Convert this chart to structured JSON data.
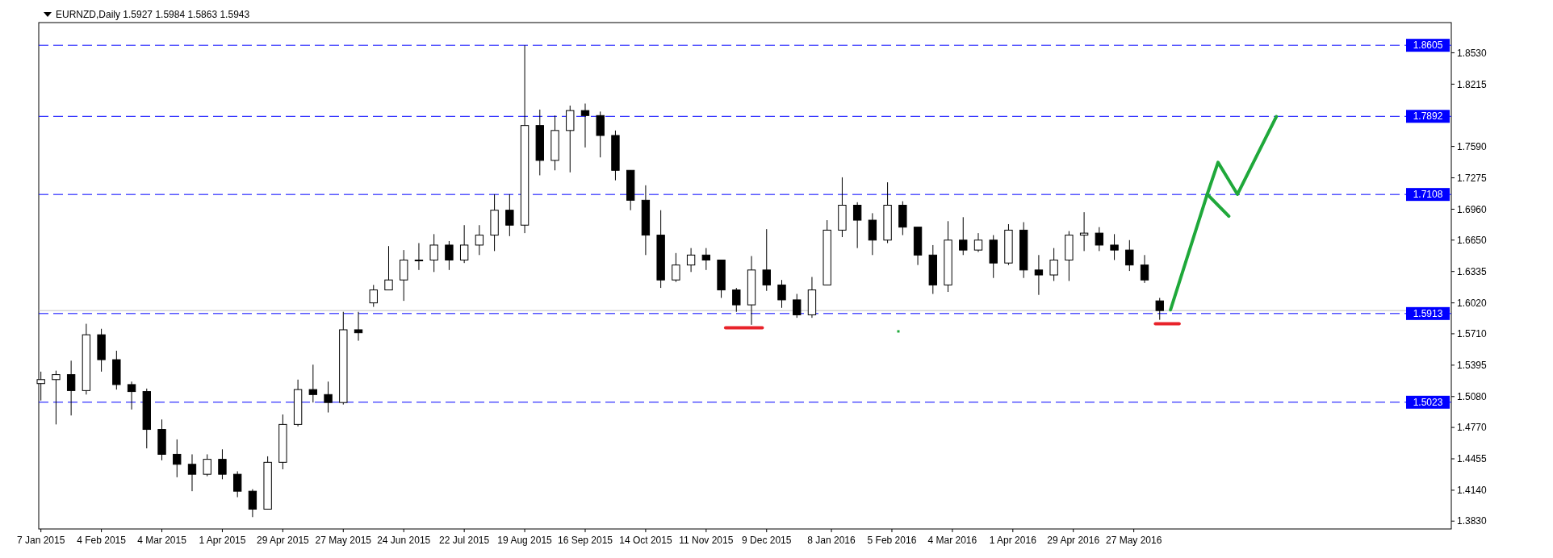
{
  "chart_data": {
    "type": "candlestick",
    "title": "EURNZD,Daily 1.5927 1.5984 1.5863 1.5943",
    "x": [
      "2015-01-07",
      "2015-01-14",
      "2015-01-21",
      "2015-01-28",
      "2015-02-04",
      "2015-02-11",
      "2015-02-18",
      "2015-02-25",
      "2015-03-04",
      "2015-03-11",
      "2015-03-18",
      "2015-03-25",
      "2015-04-01",
      "2015-04-08",
      "2015-04-15",
      "2015-04-22",
      "2015-04-29",
      "2015-05-06",
      "2015-05-13",
      "2015-05-20",
      "2015-05-27",
      "2015-06-03",
      "2015-06-10",
      "2015-06-17",
      "2015-06-24",
      "2015-07-01",
      "2015-07-08",
      "2015-07-15",
      "2015-07-22",
      "2015-07-29",
      "2015-08-05",
      "2015-08-12",
      "2015-08-19",
      "2015-08-26",
      "2015-09-02",
      "2015-09-09",
      "2015-09-16",
      "2015-09-23",
      "2015-09-30",
      "2015-10-07",
      "2015-10-14",
      "2015-10-21",
      "2015-10-28",
      "2015-11-04",
      "2015-11-11",
      "2015-11-18",
      "2015-11-25",
      "2015-12-02",
      "2015-12-09",
      "2015-12-16",
      "2015-12-23",
      "2015-12-30",
      "2016-01-06",
      "2016-01-13",
      "2016-01-20",
      "2016-01-27",
      "2016-02-03",
      "2016-02-10",
      "2016-02-17",
      "2016-02-24",
      "2016-03-02",
      "2016-03-09",
      "2016-03-16",
      "2016-03-23",
      "2016-03-30",
      "2016-04-06",
      "2016-04-13",
      "2016-04-20",
      "2016-04-27",
      "2016-05-04",
      "2016-05-11",
      "2016-05-18",
      "2016-05-25",
      "2016-06-01",
      "2016-06-08"
    ],
    "ohlc": [
      [
        1.521,
        1.533,
        1.504,
        1.525
      ],
      [
        1.525,
        1.534,
        1.48,
        1.53
      ],
      [
        1.53,
        1.544,
        1.489,
        1.514
      ],
      [
        1.514,
        1.581,
        1.51,
        1.57
      ],
      [
        1.57,
        1.576,
        1.533,
        1.545
      ],
      [
        1.545,
        1.554,
        1.515,
        1.52
      ],
      [
        1.52,
        1.523,
        1.495,
        1.513
      ],
      [
        1.513,
        1.516,
        1.456,
        1.475
      ],
      [
        1.475,
        1.485,
        1.444,
        1.45
      ],
      [
        1.45,
        1.465,
        1.427,
        1.44
      ],
      [
        1.44,
        1.45,
        1.413,
        1.43
      ],
      [
        1.43,
        1.45,
        1.428,
        1.445
      ],
      [
        1.445,
        1.455,
        1.425,
        1.43
      ],
      [
        1.43,
        1.433,
        1.407,
        1.413
      ],
      [
        1.413,
        1.415,
        1.387,
        1.395
      ],
      [
        1.395,
        1.448,
        1.395,
        1.442
      ],
      [
        1.442,
        1.49,
        1.435,
        1.48
      ],
      [
        1.48,
        1.525,
        1.478,
        1.515
      ],
      [
        1.515,
        1.54,
        1.502,
        1.51
      ],
      [
        1.51,
        1.523,
        1.492,
        1.502
      ],
      [
        1.502,
        1.593,
        1.5,
        1.575
      ],
      [
        1.575,
        1.593,
        1.564,
        1.572
      ],
      [
        1.602,
        1.62,
        1.598,
        1.615
      ],
      [
        1.615,
        1.659,
        1.615,
        1.625
      ],
      [
        1.625,
        1.655,
        1.604,
        1.645
      ],
      [
        1.645,
        1.662,
        1.635,
        1.645
      ],
      [
        1.645,
        1.671,
        1.633,
        1.66
      ],
      [
        1.66,
        1.664,
        1.635,
        1.645
      ],
      [
        1.645,
        1.68,
        1.642,
        1.66
      ],
      [
        1.66,
        1.68,
        1.65,
        1.67
      ],
      [
        1.67,
        1.711,
        1.654,
        1.695
      ],
      [
        1.695,
        1.711,
        1.669,
        1.68
      ],
      [
        1.68,
        1.8605,
        1.672,
        1.78
      ],
      [
        1.78,
        1.796,
        1.73,
        1.745
      ],
      [
        1.745,
        1.79,
        1.735,
        1.775
      ],
      [
        1.775,
        1.8,
        1.733,
        1.795
      ],
      [
        1.795,
        1.802,
        1.758,
        1.79
      ],
      [
        1.79,
        1.794,
        1.748,
        1.77
      ],
      [
        1.77,
        1.775,
        1.725,
        1.735
      ],
      [
        1.735,
        1.735,
        1.695,
        1.705
      ],
      [
        1.705,
        1.72,
        1.65,
        1.67
      ],
      [
        1.67,
        1.695,
        1.617,
        1.625
      ],
      [
        1.625,
        1.652,
        1.623,
        1.64
      ],
      [
        1.64,
        1.657,
        1.633,
        1.65
      ],
      [
        1.65,
        1.657,
        1.635,
        1.645
      ],
      [
        1.645,
        1.645,
        1.607,
        1.615
      ],
      [
        1.615,
        1.617,
        1.593,
        1.6
      ],
      [
        1.6,
        1.649,
        1.58,
        1.635
      ],
      [
        1.635,
        1.676,
        1.614,
        1.62
      ],
      [
        1.62,
        1.625,
        1.597,
        1.605
      ],
      [
        1.605,
        1.611,
        1.587,
        1.59
      ],
      [
        1.59,
        1.628,
        1.587,
        1.615
      ],
      [
        1.62,
        1.685,
        1.62,
        1.675
      ],
      [
        1.675,
        1.728,
        1.668,
        1.7
      ],
      [
        1.7,
        1.703,
        1.657,
        1.685
      ],
      [
        1.685,
        1.692,
        1.65,
        1.665
      ],
      [
        1.665,
        1.723,
        1.662,
        1.7
      ],
      [
        1.7,
        1.704,
        1.67,
        1.678
      ],
      [
        1.678,
        1.678,
        1.64,
        1.65
      ],
      [
        1.65,
        1.66,
        1.611,
        1.62
      ],
      [
        1.62,
        1.684,
        1.613,
        1.665
      ],
      [
        1.665,
        1.688,
        1.65,
        1.655
      ],
      [
        1.655,
        1.672,
        1.653,
        1.665
      ],
      [
        1.665,
        1.67,
        1.627,
        1.642
      ],
      [
        1.642,
        1.681,
        1.64,
        1.675
      ],
      [
        1.675,
        1.683,
        1.627,
        1.635
      ],
      [
        1.635,
        1.65,
        1.61,
        1.63
      ],
      [
        1.63,
        1.657,
        1.624,
        1.645
      ],
      [
        1.645,
        1.674,
        1.624,
        1.67
      ],
      [
        1.67,
        1.693,
        1.654,
        1.672
      ],
      [
        1.672,
        1.678,
        1.654,
        1.66
      ],
      [
        1.66,
        1.671,
        1.645,
        1.655
      ],
      [
        1.655,
        1.665,
        1.634,
        1.64
      ],
      [
        1.64,
        1.65,
        1.622,
        1.625
      ],
      [
        1.604,
        1.607,
        1.585,
        1.5943
      ]
    ],
    "series": [
      {
        "type": "line",
        "color": "#1fa83a",
        "x": [
          "2016-06-13",
          "2016-06-30",
          "2016-07-05",
          "2016-07-14",
          "2016-08-01"
        ],
        "values": [
          1.595,
          1.711,
          1.743,
          1.711,
          1.789
        ]
      },
      {
        "type": "line",
        "color": "#1fa83a",
        "x": [
          "2016-06-30",
          "2016-07-10"
        ],
        "values": [
          1.711,
          1.689
        ]
      },
      {
        "type": "line",
        "color": "#e8232a",
        "x": [
          "2015-11-20",
          "2015-12-07"
        ],
        "values": [
          1.577,
          1.577
        ]
      },
      {
        "type": "line",
        "color": "#e8232a",
        "x": [
          "2016-06-06",
          "2016-06-17"
        ],
        "values": [
          1.581,
          1.581
        ]
      }
    ],
    "xlim": [
      "2015-01-06",
      "2016-10-21"
    ],
    "xticks": [
      {
        "value": "2015-01-07",
        "label": "7 Jan 2015"
      },
      {
        "value": "2015-02-04",
        "label": "4 Feb 2015"
      },
      {
        "value": "2015-03-04",
        "label": "4 Mar 2015"
      },
      {
        "value": "2015-04-01",
        "label": "1 Apr 2015"
      },
      {
        "value": "2015-04-29",
        "label": "29 Apr 2015"
      },
      {
        "value": "2015-05-27",
        "label": "27 May 2015"
      },
      {
        "value": "2015-06-24",
        "label": "24 Jun 2015"
      },
      {
        "value": "2015-07-22",
        "label": "22 Jul 2015"
      },
      {
        "value": "2015-08-19",
        "label": "19 Aug 2015"
      },
      {
        "value": "2015-09-16",
        "label": "16 Sep 2015"
      },
      {
        "value": "2015-10-14",
        "label": "14 Oct 2015"
      },
      {
        "value": "2015-11-11",
        "label": "11 Nov 2015"
      },
      {
        "value": "2015-12-09",
        "label": "9 Dec 2015"
      },
      {
        "value": "2016-01-08",
        "label": "8 Jan 2016"
      },
      {
        "value": "2016-02-05",
        "label": "5 Feb 2016"
      },
      {
        "value": "2016-03-04",
        "label": "4 Mar 2016"
      },
      {
        "value": "2016-04-01",
        "label": "1 Apr 2016"
      },
      {
        "value": "2016-04-29",
        "label": "29 Apr 2016"
      },
      {
        "value": "2016-05-27",
        "label": "27 May 2016"
      }
    ],
    "ylim": [
      1.3751,
      1.8833
    ],
    "yticks": [
      {
        "value": 1.383,
        "label": "1.3830"
      },
      {
        "value": 1.414,
        "label": "1.4140"
      },
      1.4455,
      {
        "value": 1.477,
        "label": "1.4770"
      },
      {
        "value": 1.508,
        "label": "1.5080"
      },
      1.5395,
      {
        "value": 1.571,
        "label": "1.5710"
      },
      {
        "value": 1.602,
        "label": "1.6020"
      },
      1.6335,
      {
        "value": 1.665,
        "label": "1.6650"
      },
      {
        "value": 1.696,
        "label": "1.6960"
      },
      1.7275,
      {
        "value": 1.759,
        "label": "1.7590"
      },
      1.8215,
      {
        "value": 1.853,
        "label": "1.8530"
      }
    ],
    "ref_lines": [
      {
        "axis": "y",
        "value": 1.8605,
        "label": "1.8605",
        "color": "#0000ff",
        "line_style": "dashed"
      },
      {
        "axis": "y",
        "value": 1.7892,
        "label": "1.7892",
        "color": "#0000ff",
        "line_style": "dashed"
      },
      {
        "axis": "y",
        "value": 1.7108,
        "label": "1.7108",
        "color": "#0000ff",
        "line_style": "dashed"
      },
      {
        "axis": "y",
        "value": 1.5913,
        "label": "1.5913",
        "color": "#0000ff",
        "line_style": "dashed"
      },
      {
        "axis": "y",
        "value": 1.5023,
        "label": "1.5023",
        "color": "#0000ff",
        "line_style": "dashed"
      },
      {
        "axis": "y",
        "value": 1.5943,
        "color": "#c0c0c0",
        "line_style": "solid"
      }
    ]
  }
}
